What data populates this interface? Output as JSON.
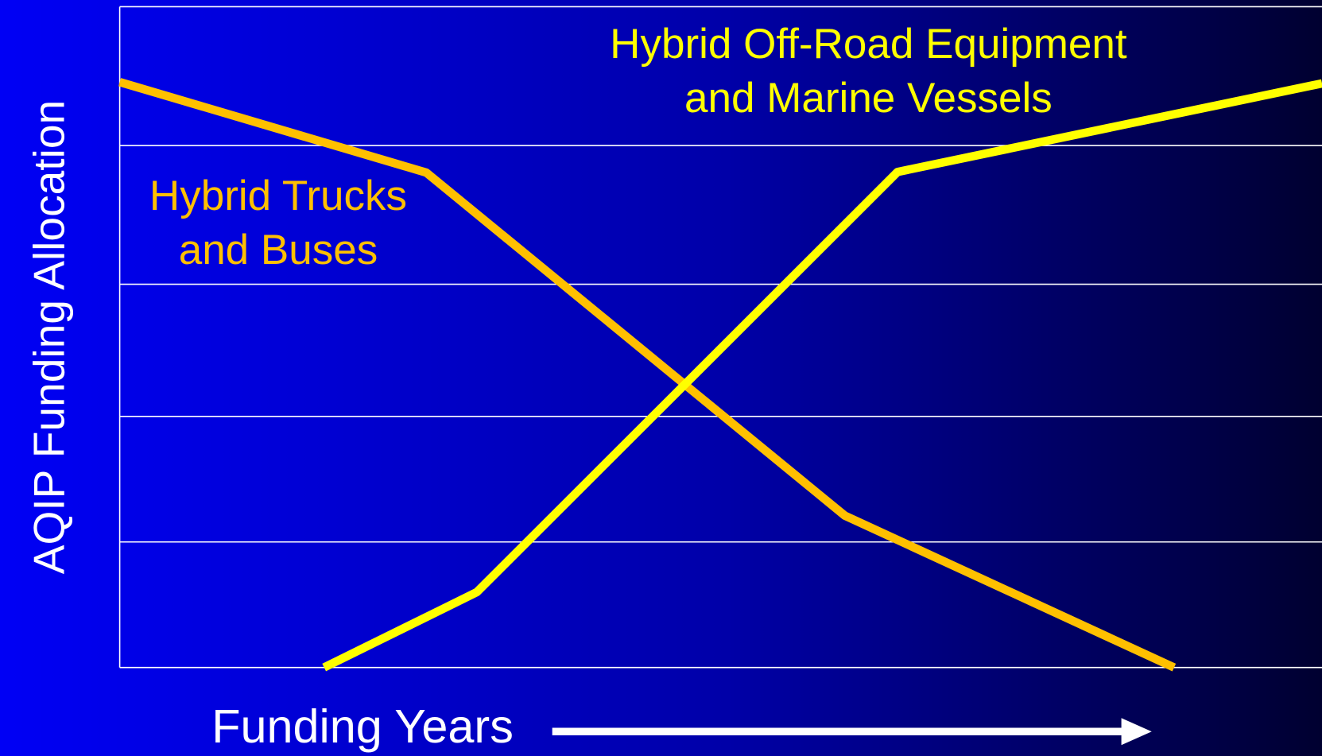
{
  "chart_data": {
    "type": "line",
    "y_label": "AQIP Funding Allocation",
    "x_label": "Funding Years",
    "xlim": [
      0,
      100
    ],
    "ylim": [
      0,
      100
    ],
    "yticks": [
      0,
      19,
      38,
      58,
      79,
      100
    ],
    "grid": true,
    "series": [
      {
        "name": "Hybrid Trucks and Buses",
        "color": "#ffc000",
        "x": [
          0,
          25.5,
          60.3,
          87.7
        ],
        "values": [
          88.6,
          74.9,
          23.0,
          0
        ]
      },
      {
        "name": "Hybrid Off-Road Equipment and Marine Vessels",
        "color": "#ffff00",
        "x": [
          17.0,
          29.7,
          64.7,
          100
        ],
        "values": [
          0,
          11.4,
          75.0,
          88.4
        ]
      }
    ]
  }
}
